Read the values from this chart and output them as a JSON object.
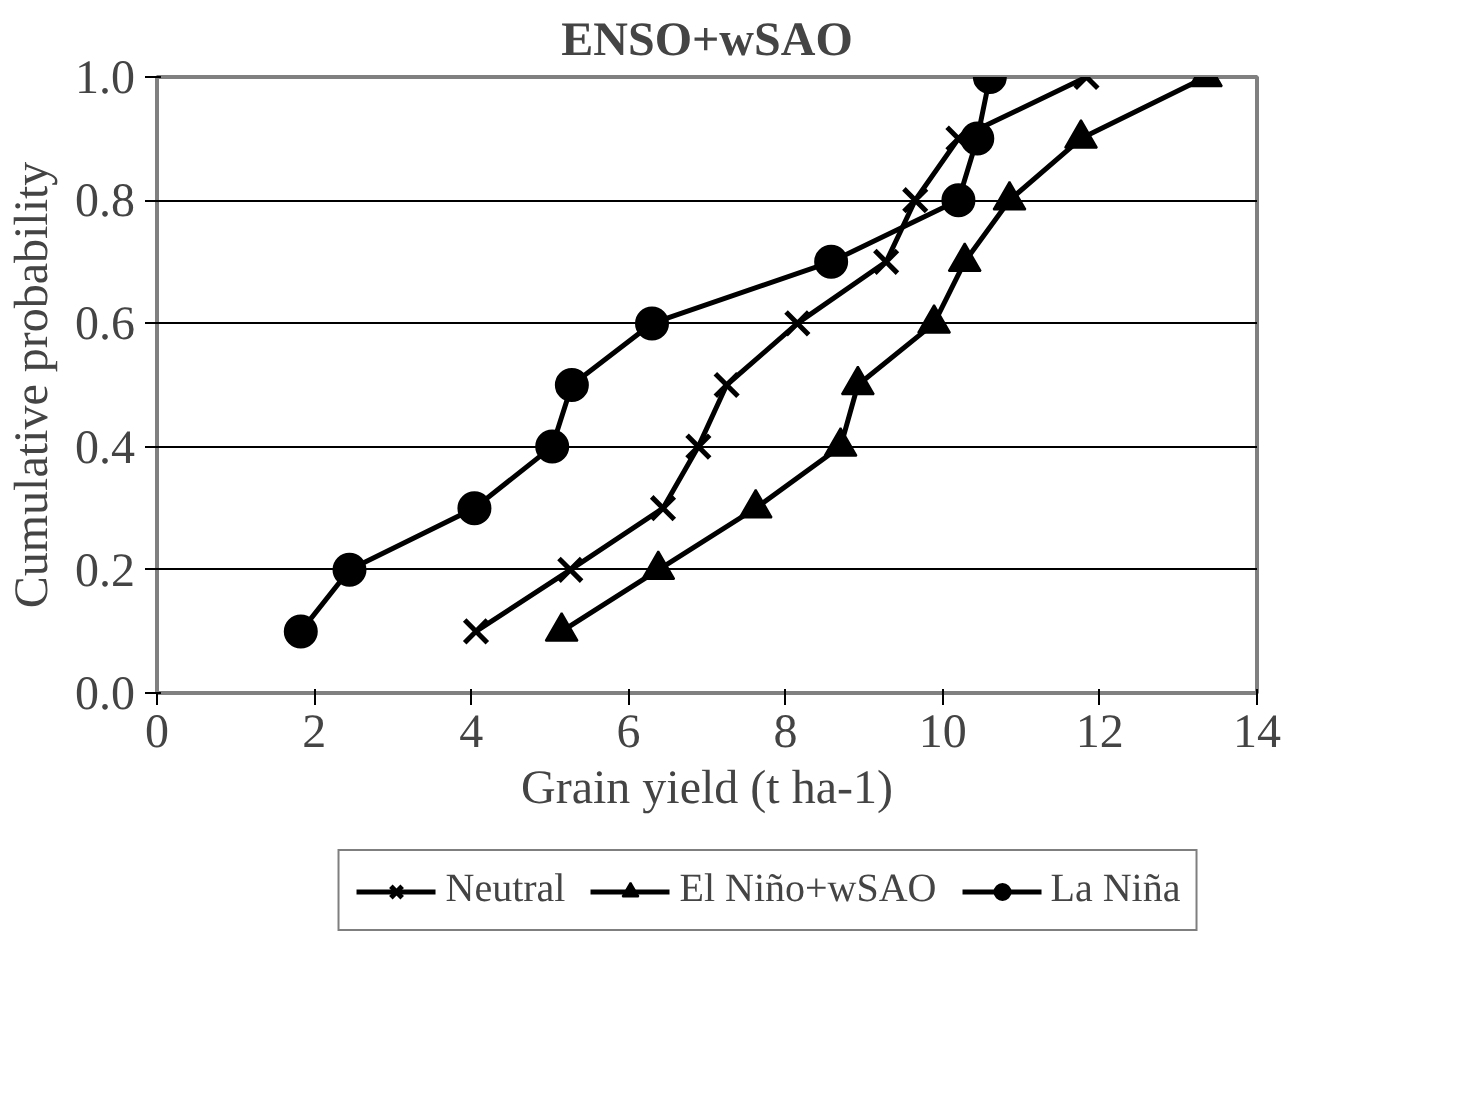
{
  "chart_data": {
    "type": "line",
    "title": "ENSO+wSAO",
    "xlabel": "Grain yield (t ha-1)",
    "ylabel": "Cumulative probability",
    "xlim": [
      0,
      14
    ],
    "xticks": [
      0,
      2,
      4,
      6,
      8,
      10,
      12,
      14
    ],
    "ylim": [
      0,
      1
    ],
    "yticks": [
      {
        "value": 0,
        "label": "0.0"
      },
      {
        "value": 0.2,
        "label": "0.2"
      },
      {
        "value": 0.4,
        "label": "0.4"
      },
      {
        "value": 0.6,
        "label": "0.6"
      },
      {
        "value": 0.8,
        "label": "0.8"
      },
      {
        "value": 1,
        "label": "1.0"
      }
    ],
    "grid": "y",
    "legend": "bottom",
    "series": [
      {
        "name": "Neutral",
        "color": "#000000",
        "marker": "cross",
        "x": [
          4.06,
          5.26,
          6.44,
          6.89,
          7.25,
          8.15,
          9.28,
          9.65,
          10.2,
          11.83
        ],
        "values": [
          0.1,
          0.2,
          0.3,
          0.4,
          0.5,
          0.6,
          0.7,
          0.8,
          0.9,
          1.0
        ]
      },
      {
        "name": "El Niño+wSAO",
        "color": "#000000",
        "marker": "triangle",
        "x": [
          5.15,
          6.38,
          7.62,
          8.7,
          8.92,
          9.89,
          10.28,
          10.85,
          11.76,
          13.35
        ],
        "values": [
          0.1,
          0.2,
          0.3,
          0.4,
          0.5,
          0.6,
          0.7,
          0.8,
          0.9,
          1.0
        ]
      },
      {
        "name": "La Niña",
        "color": "#000000",
        "marker": "circle",
        "x": [
          1.83,
          2.45,
          4.04,
          5.03,
          5.28,
          6.3,
          8.58,
          10.2,
          10.44,
          10.6
        ],
        "values": [
          0.1,
          0.2,
          0.3,
          0.4,
          0.5,
          0.6,
          0.7,
          0.8,
          0.9,
          1.0
        ]
      }
    ]
  }
}
